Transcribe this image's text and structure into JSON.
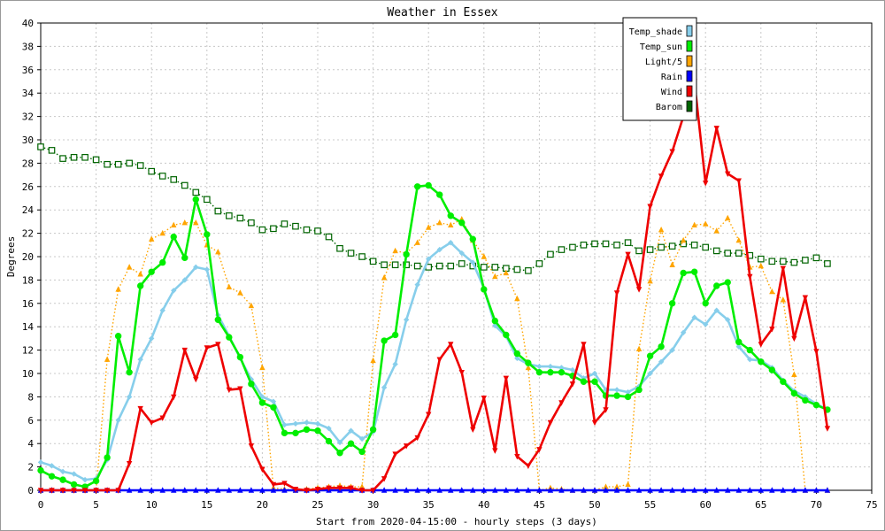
{
  "chart_data": {
    "type": "line",
    "title": "Weather in Essex",
    "xlabel": "Start from 2020-04-15:00 - hourly steps (3 days)",
    "ylabel": "Degrees",
    "xlim": [
      0,
      75
    ],
    "ylim": [
      0,
      40
    ],
    "x_ticks": [
      0,
      5,
      10,
      15,
      20,
      25,
      30,
      35,
      40,
      45,
      50,
      55,
      60,
      65,
      70,
      75
    ],
    "y_ticks": [
      0,
      2,
      4,
      6,
      8,
      10,
      12,
      14,
      16,
      18,
      20,
      22,
      24,
      26,
      28,
      30,
      32,
      34,
      36,
      38,
      40
    ],
    "grid": true,
    "legend_position": "top-right",
    "x": [
      0,
      1,
      2,
      3,
      4,
      5,
      6,
      7,
      8,
      9,
      10,
      11,
      12,
      13,
      14,
      15,
      16,
      17,
      18,
      19,
      20,
      21,
      22,
      23,
      24,
      25,
      26,
      27,
      28,
      29,
      30,
      31,
      32,
      33,
      34,
      35,
      36,
      37,
      38,
      39,
      40,
      41,
      42,
      43,
      44,
      45,
      46,
      47,
      48,
      49,
      50,
      51,
      52,
      53,
      54,
      55,
      56,
      57,
      58,
      59,
      60,
      61,
      62,
      63,
      64,
      65,
      66,
      67,
      68,
      69,
      70,
      71
    ],
    "series": [
      {
        "name": "Temp_shade",
        "color": "#87ceeb",
        "style": "solid",
        "marker": "diamond",
        "values": [
          2.4,
          2.1,
          1.6,
          1.4,
          0.9,
          1.0,
          2.6,
          6.0,
          8.0,
          11.2,
          13.0,
          15.4,
          17.1,
          18.0,
          19.1,
          18.9,
          15.0,
          13.2,
          11.3,
          9.5,
          8.0,
          7.6,
          5.6,
          5.7,
          5.8,
          5.7,
          5.3,
          4.1,
          5.1,
          4.4,
          5.0,
          8.8,
          10.8,
          14.6,
          17.6,
          19.8,
          20.6,
          21.2,
          20.3,
          19.5,
          17.3,
          14.1,
          13.2,
          11.3,
          10.8,
          10.6,
          10.6,
          10.5,
          10.3,
          9.6,
          10.0,
          8.6,
          8.6,
          8.4,
          8.9,
          10.0,
          11.0,
          12.0,
          13.5,
          14.8,
          14.2,
          15.4,
          14.6,
          12.3,
          11.2,
          11.1,
          10.5,
          9.4,
          8.5,
          8.0,
          7.4,
          6.9
        ]
      },
      {
        "name": "Temp_sun",
        "color": "#00ee00",
        "style": "solid",
        "marker": "circle",
        "values": [
          1.7,
          1.2,
          0.9,
          0.5,
          0.3,
          0.8,
          2.8,
          13.2,
          10.1,
          17.5,
          18.7,
          19.5,
          21.7,
          19.9,
          24.9,
          21.9,
          14.6,
          13.1,
          11.4,
          9.1,
          7.5,
          7.1,
          4.9,
          4.9,
          5.2,
          5.1,
          4.2,
          3.2,
          4.0,
          3.3,
          5.2,
          12.8,
          13.3,
          20.2,
          26.0,
          26.1,
          25.3,
          23.5,
          22.9,
          21.5,
          17.2,
          14.5,
          13.3,
          11.7,
          10.9,
          10.1,
          10.1,
          10.1,
          9.8,
          9.3,
          9.3,
          8.1,
          8.1,
          8.0,
          8.6,
          11.5,
          12.3,
          16.0,
          18.6,
          18.7,
          16.0,
          17.5,
          17.8,
          12.7,
          12.0,
          11.0,
          10.3,
          9.3,
          8.3,
          7.7,
          7.3,
          6.9
        ]
      },
      {
        "name": "Light/5",
        "color": "#ffa500",
        "style": "dotted",
        "marker": "triangle",
        "values": [
          0.0,
          0.0,
          0.0,
          0.0,
          0.0,
          0.0,
          11.2,
          17.2,
          19.1,
          18.5,
          21.5,
          22.0,
          22.7,
          22.9,
          22.9,
          21.0,
          20.4,
          17.4,
          16.9,
          15.8,
          10.5,
          0.2,
          0.1,
          0.0,
          0.1,
          0.2,
          0.3,
          0.4,
          0.3,
          0.3,
          11.1,
          18.2,
          20.5,
          20.3,
          21.2,
          22.5,
          22.9,
          22.7,
          23.2,
          21.4,
          20.0,
          18.3,
          18.6,
          16.4,
          10.5,
          0.0,
          0.2,
          0.1,
          0.0,
          0.0,
          0.0,
          0.3,
          0.3,
          0.5,
          12.1,
          17.9,
          22.3,
          19.3,
          21.4,
          22.7,
          22.8,
          22.2,
          23.3,
          21.4,
          19.1,
          19.2,
          17.0,
          16.3,
          9.9,
          0.0,
          0.0,
          0.0
        ]
      },
      {
        "name": "Rain",
        "color": "#0000ff",
        "style": "solid",
        "marker": "triangle",
        "values": [
          0,
          0,
          0,
          0,
          0,
          0,
          0,
          0,
          0,
          0,
          0,
          0,
          0,
          0,
          0,
          0,
          0,
          0,
          0,
          0,
          0,
          0,
          0,
          0,
          0,
          0,
          0,
          0,
          0,
          0,
          0,
          0,
          0,
          0,
          0,
          0,
          0,
          0,
          0,
          0,
          0,
          0,
          0,
          0,
          0,
          0,
          0,
          0,
          0,
          0,
          0,
          0,
          0,
          0,
          0,
          0,
          0,
          0,
          0,
          0,
          0,
          0,
          0,
          0,
          0,
          0,
          0,
          0,
          0,
          0,
          0,
          0
        ]
      },
      {
        "name": "Wind",
        "color": "#ee0000",
        "style": "solid",
        "marker": "triangle-down",
        "values": [
          0.0,
          0.0,
          0.0,
          0.0,
          0.0,
          0.0,
          0.0,
          0.0,
          2.3,
          7.0,
          5.8,
          6.2,
          8.0,
          12.0,
          9.5,
          12.2,
          12.5,
          8.6,
          8.7,
          3.8,
          1.8,
          0.5,
          0.6,
          0.1,
          0.0,
          0.1,
          0.2,
          0.2,
          0.2,
          0.0,
          0.0,
          1.0,
          3.1,
          3.8,
          4.5,
          6.5,
          11.2,
          12.5,
          10.1,
          5.2,
          7.9,
          3.4,
          9.6,
          2.9,
          2.1,
          3.5,
          5.8,
          7.5,
          9.1,
          12.5,
          5.8,
          6.9,
          16.9,
          20.2,
          17.2,
          24.3,
          26.9,
          29.0,
          32.0,
          35.0,
          26.3,
          31.0,
          27.1,
          26.5,
          18.3,
          12.5,
          13.8,
          19.0,
          13.0,
          16.5,
          11.9,
          5.3
        ]
      },
      {
        "name": "Barom",
        "color": "#006400",
        "style": "dotted",
        "marker": "square",
        "values": [
          29.4,
          29.1,
          28.4,
          28.5,
          28.5,
          28.3,
          27.9,
          27.9,
          28.0,
          27.8,
          27.3,
          26.9,
          26.6,
          26.1,
          25.5,
          24.9,
          23.9,
          23.5,
          23.3,
          22.9,
          22.3,
          22.4,
          22.8,
          22.6,
          22.3,
          22.2,
          21.7,
          20.7,
          20.3,
          20.0,
          19.6,
          19.3,
          19.3,
          19.3,
          19.2,
          19.1,
          19.2,
          19.2,
          19.4,
          19.2,
          19.1,
          19.1,
          19.0,
          18.9,
          18.8,
          19.4,
          20.2,
          20.6,
          20.8,
          21.0,
          21.1,
          21.1,
          21.0,
          21.2,
          20.5,
          20.6,
          20.8,
          20.9,
          21.1,
          21.0,
          20.8,
          20.5,
          20.3,
          20.3,
          20.1,
          19.8,
          19.6,
          19.6,
          19.5,
          19.7,
          19.9,
          19.4
        ]
      }
    ]
  }
}
